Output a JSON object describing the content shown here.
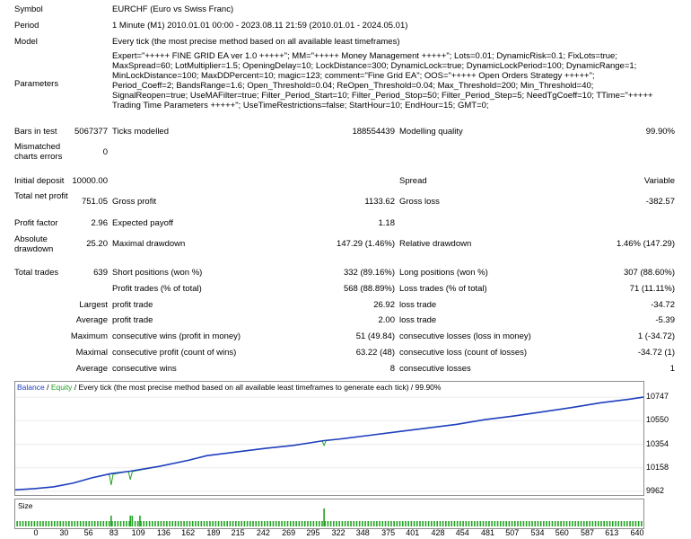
{
  "report": {
    "symbol": {
      "label": "Symbol",
      "value": "EURCHF (Euro vs Swiss Franc)"
    },
    "period": {
      "label": "Period",
      "value": "1 Minute (M1) 2010.01.01 00:00 - 2023.08.11 21:59 (2010.01.01 - 2024.05.01)"
    },
    "model": {
      "label": "Model",
      "value": "Every tick (the most precise method based on all available least timeframes)"
    },
    "parameters": {
      "label": "Parameters",
      "value": "Expert=\"+++++ FINE GRID EA ver 1.0 +++++\"; MM=\"+++++ Money Management +++++\"; Lots=0.01; DynamicRisk=0.1; FixLots=true;\nMaxSpread=60; LotMultiplier=1.5; OpeningDelay=10; LockDistance=300; DynamicLock=true; DynamicLockPeriod=100; DynamicRange=1;\nMinLockDistance=100; MaxDDPercent=10; magic=123; comment=\"Fine Grid EA\"; OOS=\"+++++ Open Orders Strategy +++++\";\nPeriod_Coeff=2; BandsRange=1.6; Open_Threshold=0.04; ReOpen_Threshold=0.04; Max_Threshold=200; Min_Threshold=40;\nSignalReopen=true; UseMAFilter=true; Filter_Period_Start=10; Filter_Period_Stop=50; Filter_Period_Step=5; NeedTgCoeff=10; TTime=\"+++++\nTrading Time Parameters +++++\"; UseTimeRestrictions=false; StartHour=10; EndHour=15; GMT=0;"
    },
    "bars_in_test": {
      "label": "Bars in test",
      "value": "5067377"
    },
    "ticks_modelled": {
      "label": "Ticks modelled",
      "value": "188554439"
    },
    "modelling_quality": {
      "label": "Modelling quality",
      "value": "99.90%"
    },
    "mismatched": {
      "label": "Mismatched charts errors",
      "value": "0"
    },
    "initial_deposit": {
      "label": "Initial deposit",
      "value": "10000.00"
    },
    "spread": {
      "label": "Spread",
      "value": "Variable"
    },
    "total_net_profit": {
      "label": "Total net profit",
      "value": "751.05"
    },
    "gross_profit": {
      "label": "Gross profit",
      "value": "1133.62"
    },
    "gross_loss": {
      "label": "Gross loss",
      "value": "-382.57"
    },
    "profit_factor": {
      "label": "Profit factor",
      "value": "2.96"
    },
    "expected_payoff": {
      "label": "Expected payoff",
      "value": "1.18"
    },
    "absolute_drawdown": {
      "label": "Absolute drawdown",
      "value": "25.20"
    },
    "maximal_drawdown": {
      "label": "Maximal drawdown",
      "value": "147.29 (1.46%)"
    },
    "relative_drawdown": {
      "label": "Relative drawdown",
      "value": "1.46% (147.29)"
    },
    "total_trades": {
      "label": "Total trades",
      "value": "639"
    },
    "short_positions": {
      "label": "Short positions (won %)",
      "value": "332 (89.16%)"
    },
    "long_positions": {
      "label": "Long positions (won %)",
      "value": "307 (88.60%)"
    },
    "profit_trades": {
      "label": "Profit trades (% of total)",
      "value": "568 (88.89%)"
    },
    "loss_trades": {
      "label": "Loss trades (% of total)",
      "value": "71 (11.11%)"
    },
    "largest": {
      "label": "Largest",
      "profit_label": "profit trade",
      "profit_value": "26.92",
      "loss_label": "loss trade",
      "loss_value": "-34.72"
    },
    "average": {
      "label": "Average",
      "profit_label": "profit trade",
      "profit_value": "2.00",
      "loss_label": "loss trade",
      "loss_value": "-5.39"
    },
    "maximum": {
      "label": "Maximum",
      "wins_label": "consecutive wins (profit in money)",
      "wins_value": "51 (49.84)",
      "losses_label": "consecutive losses (loss in money)",
      "losses_value": "1 (-34.72)"
    },
    "maximal": {
      "label": "Maximal",
      "profit_label": "consecutive profit (count of wins)",
      "profit_value": "63.22 (48)",
      "loss_label": "consecutive loss (count of losses)",
      "loss_value": "-34.72 (1)"
    },
    "average_consec": {
      "label": "Average",
      "wins_label": "consecutive wins",
      "wins_value": "8",
      "losses_label": "consecutive losses",
      "losses_value": "1"
    }
  },
  "chart": {
    "legend_balance": "Balance",
    "legend_sep": " / ",
    "legend_equity": "Equity",
    "legend_rest": " / Every tick (the most precise method based on all available least timeframes to generate each tick)  /  99.90%",
    "size_label": "Size",
    "balance_color": "#1f3fbf",
    "equity_color": "#22a322"
  },
  "chart_data": {
    "type": "line",
    "x_ticks": [
      "0",
      "30",
      "56",
      "83",
      "109",
      "136",
      "162",
      "189",
      "215",
      "242",
      "269",
      "295",
      "322",
      "348",
      "375",
      "401",
      "428",
      "454",
      "481",
      "507",
      "534",
      "560",
      "587",
      "613",
      "640"
    ],
    "y_ticks": [
      "10747",
      "10550",
      "10354",
      "10158",
      "9962"
    ],
    "ylim": [
      9962,
      10800
    ],
    "xlim": [
      0,
      655
    ],
    "series": [
      {
        "name": "Balance",
        "x": [
          0,
          20,
          40,
          60,
          80,
          100,
          120,
          150,
          180,
          200,
          230,
          260,
          290,
          310,
          322,
          340,
          370,
          400,
          430,
          460,
          490,
          520,
          550,
          580,
          610,
          640,
          655
        ],
        "y": [
          9975,
          9985,
          10000,
          10030,
          10075,
          10110,
          10130,
          10170,
          10220,
          10260,
          10290,
          10320,
          10345,
          10370,
          10385,
          10400,
          10430,
          10460,
          10490,
          10520,
          10560,
          10590,
          10625,
          10660,
          10700,
          10730,
          10747
        ]
      },
      {
        "name": "Equity",
        "x": [
          0,
          20,
          40,
          60,
          80,
          98,
          100,
          102,
          118,
          120,
          122,
          150,
          180,
          200,
          230,
          260,
          290,
          310,
          320,
          322,
          324,
          340,
          370,
          400,
          430,
          460,
          490,
          520,
          550,
          580,
          610,
          640,
          655
        ],
        "y": [
          9975,
          9985,
          10000,
          10030,
          10075,
          10108,
          10015,
          10105,
          10128,
          10060,
          10127,
          10170,
          10220,
          10260,
          10290,
          10320,
          10345,
          10370,
          10383,
          10345,
          10384,
          10400,
          10430,
          10460,
          10490,
          10520,
          10560,
          10590,
          10625,
          10660,
          10700,
          10730,
          10747
        ]
      }
    ],
    "size_bars": {
      "x": [
        2,
        5,
        8,
        11,
        14,
        17,
        20,
        23,
        26,
        29,
        32,
        35,
        38,
        41,
        44,
        47,
        50,
        53,
        56,
        59,
        62,
        65,
        68,
        71,
        74,
        77,
        80,
        83,
        86,
        89,
        92,
        95,
        98,
        100,
        101,
        104,
        107,
        110,
        113,
        116,
        119,
        120,
        122,
        125,
        128,
        130,
        131,
        134,
        137,
        140,
        143,
        146,
        149,
        152,
        155,
        158,
        161,
        164,
        167,
        170,
        173,
        176,
        179,
        182,
        185,
        188,
        191,
        194,
        197,
        200,
        203,
        206,
        209,
        212,
        215,
        218,
        221,
        224,
        227,
        230,
        233,
        236,
        239,
        242,
        245,
        248,
        251,
        254,
        257,
        260,
        263,
        266,
        269,
        272,
        275,
        278,
        281,
        284,
        287,
        290,
        293,
        296,
        299,
        302,
        305,
        308,
        311,
        314,
        317,
        320,
        322,
        323,
        326,
        329,
        332,
        335,
        338,
        341,
        344,
        347,
        350,
        353,
        356,
        359,
        362,
        365,
        368,
        371,
        374,
        377,
        380,
        383,
        386,
        389,
        392,
        395,
        398,
        401,
        404,
        407,
        410,
        413,
        416,
        419,
        422,
        425,
        428,
        431,
        434,
        437,
        440,
        443,
        446,
        449,
        452,
        455,
        458,
        461,
        464,
        467,
        470,
        473,
        476,
        479,
        482,
        485,
        488,
        491,
        494,
        497,
        500,
        503,
        506,
        509,
        512,
        515,
        518,
        521,
        524,
        527,
        530,
        533,
        536,
        539,
        542,
        545,
        548,
        551,
        554,
        557,
        560,
        563,
        566,
        569,
        572,
        575,
        578,
        581,
        584,
        587,
        590,
        593,
        596,
        599,
        602,
        605,
        608,
        611,
        614,
        617,
        620,
        623,
        626,
        629,
        632,
        635,
        638,
        641,
        644,
        647,
        650,
        653
      ],
      "big_at": [
        100,
        120,
        122,
        130,
        322
      ]
    }
  }
}
